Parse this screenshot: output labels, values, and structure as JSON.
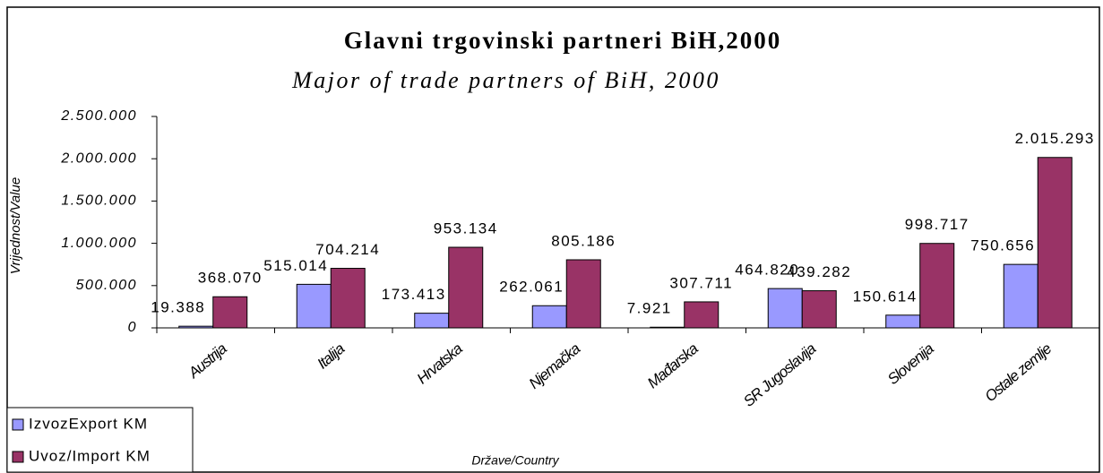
{
  "chart_data": {
    "type": "bar",
    "title": "Glavni trgovinski partneri BiH,2000",
    "subtitle": "Major of trade partners of BiH, 2000",
    "y_label": "Vrijednost/Value",
    "x_label": "Države/Country",
    "categories": [
      "Austrija",
      "Italija",
      "Hrvatska",
      "Njemačka",
      "Mađarska",
      "SR Jugoslavija",
      "Slovenija",
      "Ostale zemlje"
    ],
    "series": [
      {
        "name": "IzvozExport KM",
        "color": "#9999ff",
        "values": [
          19388,
          515014,
          173413,
          262061,
          7921,
          464820,
          150614,
          750656
        ],
        "value_labels": [
          "19.388",
          "515.014",
          "173.413",
          "262.061",
          "7.921",
          "464.820",
          "150.614",
          "750.656"
        ]
      },
      {
        "name": "Uvoz/Import KM",
        "color": "#993366",
        "values": [
          368070,
          704214,
          953134,
          805186,
          307711,
          439282,
          998717,
          2015293
        ],
        "value_labels": [
          "368.070",
          "704.214",
          "953.134",
          "805.186",
          "307.711",
          "439.282",
          "998.717",
          "2.015.293"
        ]
      }
    ],
    "ylim": [
      0,
      2500000
    ],
    "yticks": [
      0,
      {
        "value": 500000,
        "label": "500.000"
      },
      {
        "value": 1000000,
        "label": "1.000.000"
      },
      {
        "value": 1500000,
        "label": "1.500.000"
      },
      {
        "value": 2000000,
        "label": "2.000.000"
      },
      {
        "value": 2500000,
        "label": "2.500.000"
      }
    ],
    "legend": "bottom-left"
  }
}
